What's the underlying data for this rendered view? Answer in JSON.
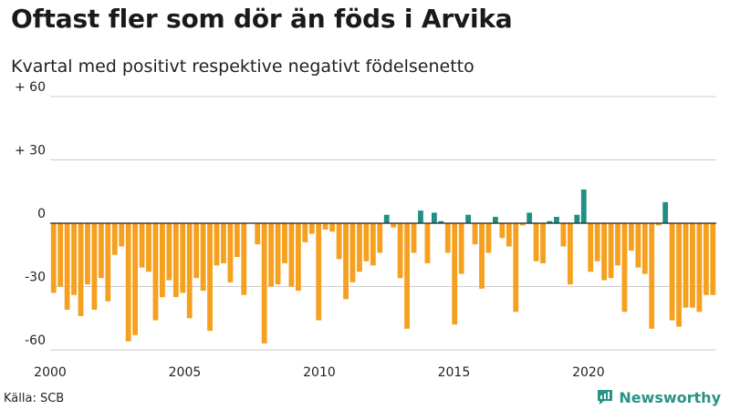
{
  "header": {
    "title": "Oftast fler som dör än föds i Arvika",
    "subtitle": "Kvartal med positivt respektive negativt födelsenetto"
  },
  "footer": {
    "source": "Källa: SCB",
    "brand": "Newsworthy"
  },
  "colors": {
    "positive": "#1f8f84",
    "negative": "#f5a01e",
    "grid": "#cccccc",
    "baseline": "#222222"
  },
  "chart_data": {
    "type": "bar",
    "title": "Oftast fler som dör än föds i Arvika",
    "subtitle": "Kvartal med positivt respektive negativt födelsenetto",
    "xlabel": "",
    "ylabel": "",
    "ylim": [
      -60,
      60
    ],
    "y_ticks": [
      {
        "value": 60,
        "label": "+ 60"
      },
      {
        "value": 30,
        "label": "+ 30"
      },
      {
        "value": 0,
        "label": "0"
      },
      {
        "value": -30,
        "label": "-30"
      },
      {
        "value": -60,
        "label": "-60"
      }
    ],
    "x_start_year": 2000,
    "x_end_year": 2024.75,
    "x_ticks": [
      "2000",
      "2005",
      "2010",
      "2015",
      "2020"
    ],
    "frequency": "quarterly",
    "values": [
      -33,
      -30,
      -41,
      -34,
      -44,
      -29,
      -41,
      -26,
      -37,
      -15,
      -11,
      -56,
      -53,
      -21,
      -23,
      -46,
      -35,
      -27,
      -35,
      -33,
      -45,
      -26,
      -32,
      -51,
      -20,
      -19,
      -28,
      -16,
      -34,
      0,
      -10,
      -57,
      -30,
      -29,
      -19,
      -30,
      -32,
      -9,
      -5,
      -46,
      -3,
      -4,
      -17,
      -36,
      -28,
      -23,
      -18,
      -20,
      -14,
      4,
      -2,
      -26,
      -50,
      -14,
      6,
      -19,
      5,
      1,
      -14,
      -48,
      -24,
      4,
      -10,
      -31,
      -14,
      3,
      -7,
      -11,
      -42,
      -1,
      5,
      -18,
      -19,
      1,
      3,
      -11,
      -29,
      4,
      16,
      -23,
      -18,
      -27,
      -26,
      -20,
      -42,
      -13,
      -21,
      -24,
      -50,
      -1,
      10,
      -46,
      -49,
      -40,
      -40,
      -42,
      -34,
      -34
    ]
  }
}
